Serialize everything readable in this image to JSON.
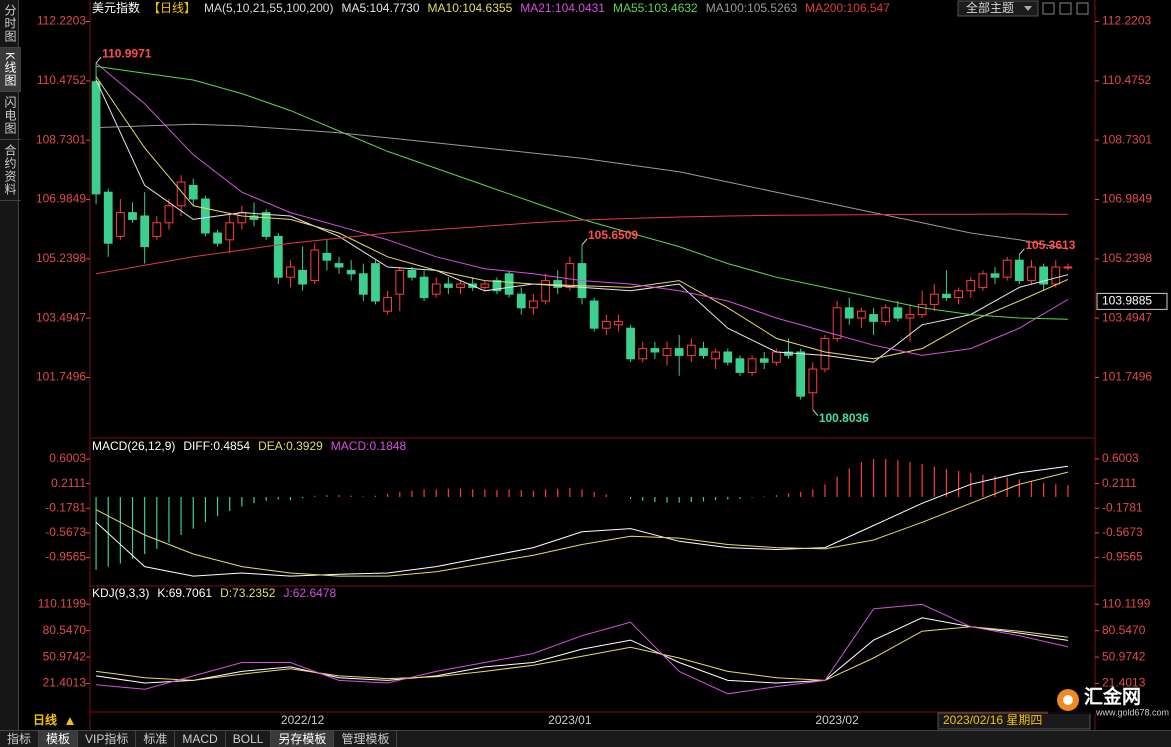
{
  "chart_data": [
    {
      "type": "candlestick",
      "title": "美元指数",
      "period": "【日线】",
      "indicator": "MA(5,10,21,55,100,200)",
      "categories": [
        null,
        null,
        null,
        null,
        null,
        null,
        null,
        null,
        null,
        null,
        null,
        null,
        null,
        null,
        null,
        null,
        null,
        "2022/12",
        null,
        null,
        null,
        null,
        null,
        null,
        null,
        null,
        null,
        null,
        null,
        null,
        null,
        null,
        null,
        null,
        null,
        null,
        null,
        null,
        null,
        "2023/01",
        null,
        null,
        null,
        null,
        null,
        null,
        null,
        null,
        null,
        null,
        null,
        null,
        null,
        null,
        null,
        null,
        null,
        null,
        null,
        null,
        null,
        "2023/02",
        null,
        null,
        null,
        null,
        null,
        null,
        null,
        null,
        null,
        null,
        null,
        null,
        null,
        null,
        null,
        null,
        null,
        null,
        null
      ],
      "open": [
        110.45,
        107.2,
        105.9,
        106.6,
        106.5,
        105.9,
        106.3,
        106.8,
        107.4,
        107.0,
        106.0,
        105.8,
        106.3,
        106.5,
        106.6,
        105.9,
        104.7,
        104.9,
        104.6,
        105.4,
        105.1,
        104.9,
        104.8,
        105.1,
        103.7,
        104.2,
        104.9,
        104.7,
        104.2,
        104.5,
        104.4,
        104.5,
        104.4,
        104.6,
        104.8,
        104.2,
        103.8,
        104.0,
        104.6,
        104.4,
        105.1,
        104.0,
        103.2,
        103.3,
        103.2,
        102.3,
        102.6,
        102.4,
        102.6,
        102.4,
        102.6,
        102.3,
        102.5,
        102.3,
        101.9,
        102.3,
        102.2,
        102.5,
        102.5,
        101.3,
        102.0,
        102.9,
        103.8,
        103.5,
        103.6,
        103.4,
        103.8,
        103.5,
        103.6,
        103.9,
        104.2,
        104.1,
        104.3,
        104.4,
        104.8,
        104.7,
        105.2,
        104.6,
        105.0,
        104.5,
        105.0
      ],
      "high": [
        110.9971,
        107.3,
        107.0,
        106.9,
        107.2,
        106.5,
        107.0,
        107.7,
        107.6,
        107.1,
        106.1,
        106.6,
        106.8,
        106.9,
        106.7,
        106.0,
        105.2,
        105.6,
        105.7,
        105.8,
        105.3,
        105.2,
        105.1,
        105.2,
        104.3,
        105.0,
        105.0,
        104.9,
        104.7,
        104.7,
        104.6,
        104.7,
        104.6,
        104.7,
        104.9,
        104.4,
        104.2,
        104.8,
        104.9,
        105.3,
        105.6509,
        104.1,
        103.6,
        103.6,
        103.3,
        102.8,
        102.8,
        102.8,
        103.0,
        102.9,
        102.8,
        102.6,
        102.6,
        102.4,
        102.4,
        102.5,
        102.6,
        102.9,
        102.6,
        102.2,
        103.0,
        104.0,
        104.1,
        103.8,
        103.8,
        103.9,
        104.0,
        103.9,
        104.3,
        104.5,
        104.9,
        104.4,
        104.7,
        104.9,
        105.0,
        105.3,
        105.3613,
        105.2,
        105.1,
        105.2,
        105.1
      ],
      "low": [
        106.85,
        105.3,
        105.8,
        106.3,
        105.1,
        105.8,
        106.1,
        106.5,
        106.8,
        105.9,
        105.6,
        105.4,
        106.1,
        106.2,
        105.8,
        104.5,
        104.4,
        104.3,
        104.5,
        104.9,
        104.8,
        104.6,
        104.0,
        103.9,
        103.6,
        103.7,
        104.6,
        104.0,
        104.1,
        104.2,
        104.2,
        104.3,
        104.3,
        104.2,
        104.1,
        103.6,
        103.6,
        103.9,
        104.2,
        104.3,
        103.9,
        103.1,
        103.0,
        103.1,
        102.2,
        102.2,
        102.3,
        102.1,
        101.8,
        102.2,
        102.3,
        102.0,
        102.1,
        101.8,
        101.8,
        102.0,
        102.1,
        102.3,
        101.1,
        100.8036,
        101.9,
        102.8,
        103.3,
        103.2,
        103.0,
        103.3,
        103.4,
        102.8,
        103.5,
        103.7,
        104.0,
        103.9,
        104.1,
        104.3,
        104.5,
        104.6,
        104.5,
        104.5,
        104.3,
        104.4,
        104.9
      ],
      "close": [
        107.15,
        105.7,
        106.6,
        106.4,
        105.6,
        106.3,
        106.8,
        107.5,
        107.0,
        106.0,
        105.7,
        106.3,
        106.6,
        106.4,
        105.9,
        104.7,
        105.0,
        104.5,
        105.5,
        105.2,
        105.0,
        104.8,
        104.2,
        104.0,
        104.1,
        104.9,
        104.7,
        104.1,
        104.5,
        104.4,
        104.5,
        104.4,
        104.5,
        104.3,
        104.2,
        103.8,
        104.0,
        104.6,
        104.4,
        105.1,
        104.1,
        103.2,
        103.4,
        103.4,
        102.3,
        102.6,
        102.5,
        102.6,
        102.4,
        102.7,
        102.4,
        102.5,
        102.2,
        101.9,
        102.3,
        102.2,
        102.5,
        102.4,
        101.2,
        102.0,
        102.9,
        103.8,
        103.5,
        103.7,
        103.4,
        103.8,
        103.5,
        103.6,
        103.9,
        104.2,
        104.1,
        104.3,
        104.6,
        104.8,
        104.7,
        105.2,
        104.6,
        105.0,
        104.5,
        105.0,
        105.0
      ],
      "up_color": "#ff3c3c",
      "down_color": "#3ccf8e",
      "series": [
        {
          "name": "MA5:104.7730",
          "color": "#e6e6e6",
          "x": [
            0,
            4,
            8,
            12,
            16,
            20,
            24,
            28,
            32,
            36,
            40,
            44,
            48,
            52,
            56,
            60,
            64,
            68,
            72,
            76,
            80
          ],
          "values": [
            110.5,
            107.4,
            106.4,
            106.6,
            106.5,
            105.9,
            105.0,
            104.9,
            104.3,
            104.5,
            104.4,
            104.3,
            104.5,
            103.2,
            102.5,
            102.4,
            102.2,
            103.3,
            103.6,
            104.4,
            104.773
          ]
        },
        {
          "name": "MA10:104.6355",
          "color": "#e6dc64",
          "x": [
            0,
            4,
            8,
            12,
            16,
            20,
            24,
            28,
            32,
            36,
            40,
            44,
            48,
            52,
            56,
            60,
            64,
            68,
            72,
            76,
            80
          ],
          "values": [
            110.6,
            108.5,
            106.8,
            106.5,
            106.4,
            106.0,
            105.3,
            104.9,
            104.6,
            104.5,
            104.45,
            104.4,
            104.6,
            103.8,
            102.9,
            102.5,
            102.3,
            102.6,
            103.4,
            104.0,
            104.6355
          ]
        },
        {
          "name": "MA21:104.0431",
          "color": "#d84fe0",
          "x": [
            0,
            4,
            8,
            12,
            16,
            20,
            24,
            28,
            32,
            36,
            40,
            44,
            48,
            52,
            56,
            60,
            64,
            68,
            72,
            76,
            80
          ],
          "values": [
            111.0,
            109.8,
            108.3,
            107.2,
            106.6,
            106.2,
            105.8,
            105.3,
            104.95,
            104.8,
            104.6,
            104.5,
            104.3,
            104.0,
            103.5,
            103.1,
            102.7,
            102.4,
            102.6,
            103.2,
            104.0431
          ]
        },
        {
          "name": "MA55:103.4632",
          "color": "#5cd64e",
          "x": [
            0,
            4,
            8,
            12,
            16,
            20,
            24,
            28,
            32,
            36,
            40,
            44,
            48,
            52,
            56,
            60,
            64,
            68,
            72,
            76,
            80
          ],
          "values": [
            110.9,
            110.7,
            110.5,
            110.1,
            109.6,
            109.0,
            108.4,
            107.9,
            107.4,
            106.9,
            106.4,
            106.0,
            105.6,
            105.1,
            104.7,
            104.4,
            104.1,
            103.8,
            103.6,
            103.5,
            103.4632
          ]
        },
        {
          "name": "MA100:105.5263",
          "color": "#9a9a9a",
          "x": [
            0,
            4,
            8,
            12,
            16,
            20,
            24,
            28,
            32,
            36,
            40,
            44,
            48,
            52,
            56,
            60,
            64,
            68,
            72,
            76,
            80
          ],
          "values": [
            109.1,
            109.15,
            109.2,
            109.15,
            109.05,
            108.95,
            108.8,
            108.65,
            108.5,
            108.35,
            108.2,
            108.0,
            107.8,
            107.5,
            107.2,
            106.9,
            106.6,
            106.3,
            106.0,
            105.8,
            105.5263
          ]
        },
        {
          "name": "MA200:106.547",
          "color": "#e03c3c",
          "x": [
            0,
            4,
            8,
            12,
            16,
            20,
            24,
            28,
            32,
            36,
            40,
            44,
            48,
            52,
            56,
            60,
            64,
            68,
            72,
            76,
            80
          ],
          "values": [
            104.8,
            105.05,
            105.3,
            105.5,
            105.7,
            105.85,
            106.0,
            106.1,
            106.2,
            106.3,
            106.38,
            106.43,
            106.47,
            106.5,
            106.52,
            106.53,
            106.54,
            106.55,
            106.55,
            106.56,
            106.547
          ]
        }
      ],
      "annotations": [
        {
          "x": 0,
          "value": 110.9971,
          "color": "#ff4d4d"
        },
        {
          "x": 40,
          "value": 105.6509,
          "color": "#ff4d4d"
        },
        {
          "x": 76,
          "value": 105.3613,
          "color": "#ff4d4d"
        },
        {
          "x": 59,
          "value": 100.8036,
          "color": "#3fe0a0"
        }
      ],
      "price_tag": 103.9885,
      "cursor_label": "2023/02/16 星期四",
      "ylim": [
        100.0,
        112.5
      ],
      "yticks": [
        112.2203,
        110.4752,
        108.7301,
        106.9849,
        105.2398,
        103.4947,
        101.7496
      ]
    },
    {
      "type": "macd",
      "title": "MACD(26,12,9)",
      "histogram_name": "MACD:0.1848",
      "up_color": "#ff3c3c",
      "down_color": "#3ccf8e",
      "values": [
        -1.15,
        -1.1,
        -1.05,
        -0.98,
        -0.9,
        -0.82,
        -0.72,
        -0.6,
        -0.5,
        -0.4,
        -0.3,
        -0.22,
        -0.15,
        -0.1,
        -0.06,
        -0.04,
        -0.05,
        -0.02,
        0.02,
        0.03,
        0.03,
        0.02,
        0.01,
        0.02,
        0.05,
        0.08,
        0.1,
        0.12,
        0.12,
        0.13,
        0.13,
        0.12,
        0.12,
        0.11,
        0.12,
        0.11,
        0.1,
        0.12,
        0.13,
        0.14,
        0.12,
        0.08,
        0.04,
        0,
        -0.03,
        -0.06,
        -0.08,
        -0.09,
        -0.09,
        -0.08,
        -0.07,
        -0.05,
        -0.04,
        -0.03,
        -0.01,
        0.01,
        0.03,
        0.06,
        0.08,
        0.12,
        0.2,
        0.32,
        0.45,
        0.55,
        0.6,
        0.6,
        0.58,
        0.55,
        0.52,
        0.48,
        0.44,
        0.41,
        0.38,
        0.35,
        0.33,
        0.31,
        0.28,
        0.25,
        0.22,
        0.2,
        0.1848
      ],
      "series": [
        {
          "name": "DIFF:0.4854",
          "color": "#ffffff",
          "x": [
            0,
            4,
            8,
            12,
            16,
            20,
            24,
            28,
            32,
            36,
            40,
            44,
            48,
            52,
            56,
            60,
            64,
            68,
            72,
            76,
            80
          ],
          "values": [
            -0.4,
            -1.1,
            -1.25,
            -1.2,
            -1.25,
            -1.22,
            -1.2,
            -1.1,
            -0.95,
            -0.8,
            -0.55,
            -0.5,
            -0.7,
            -0.8,
            -0.83,
            -0.8,
            -0.45,
            -0.1,
            0.2,
            0.38,
            0.4854
          ]
        },
        {
          "name": "DEA:0.3929",
          "color": "#e6dc64",
          "x": [
            0,
            4,
            8,
            12,
            16,
            20,
            24,
            28,
            32,
            36,
            40,
            44,
            48,
            52,
            56,
            60,
            64,
            68,
            72,
            76,
            80
          ],
          "values": [
            -0.2,
            -0.6,
            -0.9,
            -1.1,
            -1.2,
            -1.25,
            -1.25,
            -1.18,
            -1.05,
            -0.92,
            -0.75,
            -0.62,
            -0.65,
            -0.75,
            -0.8,
            -0.82,
            -0.68,
            -0.4,
            -0.1,
            0.2,
            0.3929
          ]
        }
      ],
      "ylim": [
        -1.39,
        0.9
      ],
      "yticks": [
        0.6003,
        0.2111,
        -0.1781,
        -0.5673,
        -0.9565
      ]
    },
    {
      "type": "kdj",
      "title": "KDJ(9,3,3)",
      "series": [
        {
          "name": "K:69.7061",
          "color": "#ffffff",
          "x": [
            0,
            4,
            8,
            12,
            16,
            20,
            24,
            28,
            32,
            36,
            40,
            44,
            48,
            52,
            56,
            60,
            64,
            68,
            72,
            76,
            80
          ],
          "values": [
            30,
            22,
            25,
            35,
            40,
            28,
            25,
            30,
            40,
            45,
            60,
            70,
            45,
            25,
            22,
            25,
            70,
            95,
            85,
            78,
            69.7061
          ]
        },
        {
          "name": "D:73.2352",
          "color": "#e6dc64",
          "x": [
            0,
            4,
            8,
            12,
            16,
            20,
            24,
            28,
            32,
            36,
            40,
            44,
            48,
            52,
            56,
            60,
            64,
            68,
            72,
            76,
            80
          ],
          "values": [
            35,
            28,
            25,
            32,
            38,
            30,
            27,
            29,
            35,
            42,
            52,
            62,
            50,
            35,
            28,
            25,
            50,
            80,
            85,
            80,
            73.2352
          ]
        },
        {
          "name": "J:62.6478",
          "color": "#d84fe0",
          "x": [
            0,
            4,
            8,
            12,
            16,
            20,
            24,
            28,
            32,
            36,
            40,
            44,
            48,
            52,
            56,
            60,
            64,
            68,
            72,
            76,
            80
          ],
          "values": [
            20,
            15,
            30,
            45,
            45,
            25,
            22,
            35,
            45,
            55,
            75,
            90,
            35,
            10,
            18,
            25,
            105,
            110,
            85,
            75,
            62.6478
          ]
        }
      ],
      "ylim": [
        -10.4,
        128.3
      ],
      "yticks": [
        110.1199,
        {
          "value": 80.547,
          "label": "80.5470"
        },
        50.9742,
        21.4013
      ]
    }
  ],
  "sidebar": [
    "分时图",
    "K线图",
    "闪电图",
    "合约资料"
  ],
  "toolbar": {
    "theme": "全部主题"
  },
  "bottom": {
    "period": "日线"
  },
  "tabs": [
    "指标",
    "模板",
    "VIP指标",
    "标准",
    "MACD",
    "BOLL",
    "另存模板",
    "管理模板"
  ],
  "logo": {
    "name": "汇金网",
    "url": "www.gold678.com"
  }
}
